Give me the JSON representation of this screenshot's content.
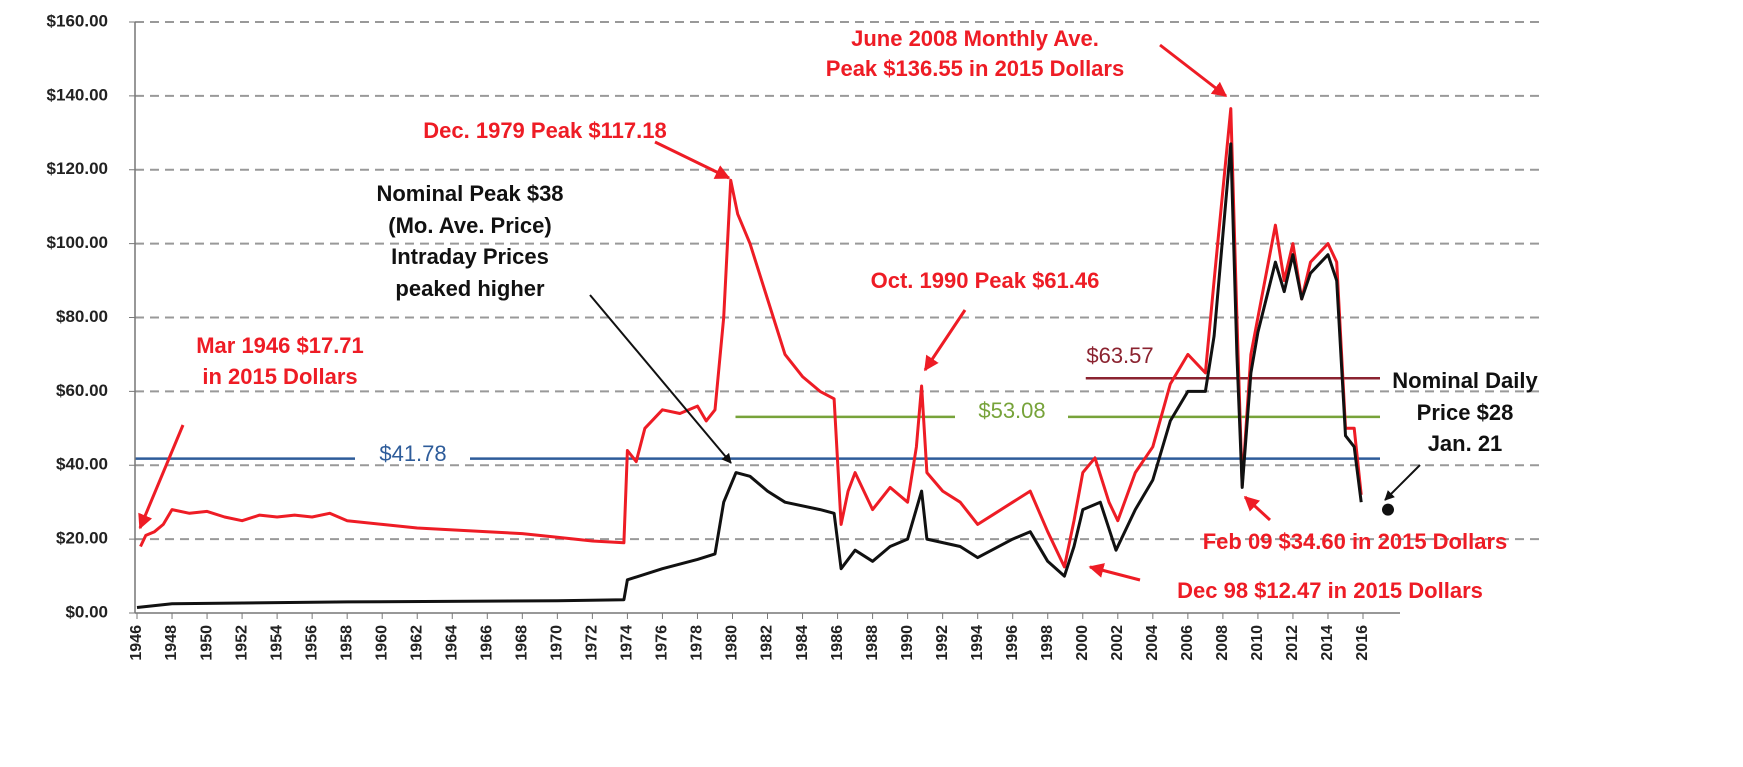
{
  "chart_data": {
    "type": "line",
    "xlim": [
      1946,
      2016
    ],
    "xticks": [
      1946,
      1948,
      1950,
      1952,
      1954,
      1956,
      1958,
      1960,
      1962,
      1964,
      1966,
      1968,
      1970,
      1972,
      1974,
      1976,
      1978,
      1980,
      1982,
      1984,
      1986,
      1988,
      1990,
      1992,
      1994,
      1996,
      1998,
      2000,
      2002,
      2004,
      2006,
      2008,
      2010,
      2012,
      2014,
      2016
    ],
    "ylim": [
      0,
      160
    ],
    "yticks": [
      {
        "value": 0,
        "label": "$0.00"
      },
      {
        "value": 20,
        "label": "$20.00"
      },
      {
        "value": 40,
        "label": "$40.00"
      },
      {
        "value": 60,
        "label": "$60.00"
      },
      {
        "value": 80,
        "label": "$80.00"
      },
      {
        "value": 100,
        "label": "$100.00"
      },
      {
        "value": 120,
        "label": "$120.00"
      },
      {
        "value": 140,
        "label": "$140.00"
      },
      {
        "value": 160,
        "label": "$160.00"
      }
    ],
    "grid": true,
    "series": [
      {
        "color": "#ee1c25",
        "x": [
          1946.2,
          1946.5,
          1947,
          1947.5,
          1948,
          1949,
          1950,
          1951,
          1952,
          1953,
          1954,
          1955,
          1956,
          1957,
          1958,
          1960,
          1962,
          1964,
          1966,
          1968,
          1970,
          1972,
          1973.8,
          1974,
          1974.5,
          1975,
          1976,
          1977,
          1978,
          1978.5,
          1979,
          1979.5,
          1979.9,
          1980.3,
          1981,
          1982,
          1983,
          1984,
          1985,
          1985.8,
          1986.2,
          1986.6,
          1987,
          1988,
          1989,
          1990,
          1990.5,
          1990.8,
          1991.1,
          1992,
          1993,
          1994,
          1995,
          1996,
          1997,
          1998,
          1998.95,
          1999.5,
          2000,
          2000.7,
          2001.5,
          2002,
          2003,
          2004,
          2005,
          2006,
          2007,
          2007.5,
          2008.45,
          2008.8,
          2009.1,
          2009.6,
          2010,
          2011,
          2011.5,
          2012,
          2012.5,
          2013,
          2014,
          2014.5,
          2015,
          2015.5,
          2015.9
        ],
        "values": [
          18,
          21,
          22,
          24,
          28,
          27,
          27.5,
          26,
          25,
          26.5,
          26,
          26.5,
          26,
          27,
          25,
          24,
          23,
          22.5,
          22,
          21.5,
          20.5,
          19.5,
          19,
          44,
          41,
          50,
          55,
          54,
          56,
          52,
          55,
          80,
          117.18,
          108,
          100,
          85,
          70,
          64,
          60,
          58,
          24,
          33,
          38,
          28,
          34,
          30,
          45,
          61.46,
          38,
          33,
          30,
          24,
          27,
          30,
          33,
          22,
          12.47,
          25,
          38,
          42,
          30,
          25,
          38,
          45,
          62,
          70,
          65,
          90,
          136.55,
          80,
          34.6,
          70,
          80,
          105,
          90,
          100,
          85,
          95,
          100,
          95,
          50,
          50,
          32
        ]
      },
      {
        "color": "#111111",
        "x": [
          1946,
          1948,
          1950,
          1958,
          1970,
          1973.8,
          1974,
          1976,
          1978,
          1979,
          1979.5,
          1980.2,
          1981,
          1982,
          1983,
          1985,
          1985.8,
          1986.2,
          1987,
          1988,
          1989,
          1990,
          1990.8,
          1991.1,
          1993,
          1994,
          1996,
          1997,
          1998,
          1998.95,
          1999.5,
          2000,
          2001,
          2001.9,
          2003,
          2004,
          2005,
          2006,
          2007,
          2007.5,
          2008.45,
          2008.8,
          2009.1,
          2009.6,
          2010,
          2011,
          2011.5,
          2012,
          2012.5,
          2013,
          2014,
          2014.5,
          2015,
          2015.5,
          2015.9
        ],
        "values": [
          1.5,
          2.5,
          2.6,
          3,
          3.3,
          3.6,
          9,
          12,
          14.5,
          16,
          30,
          38,
          37,
          33,
          30,
          28,
          27,
          12,
          17,
          14,
          18,
          20,
          33,
          20,
          18,
          15,
          20,
          22,
          14,
          10,
          18,
          28,
          30,
          17,
          28,
          36,
          52,
          60,
          60,
          75,
          127,
          70,
          34,
          65,
          76,
          95,
          87,
          97,
          85,
          92,
          97,
          90,
          48,
          45,
          30
        ]
      }
    ],
    "reference_lines": [
      {
        "label": "$41.78",
        "value": 41.78,
        "color": "#2e5c9a",
        "start": 1946,
        "end": 2016
      },
      {
        "label": "$53.08",
        "value": 53.08,
        "color": "#77a33a",
        "start": 1980,
        "end": 2016
      },
      {
        "label": "$63.57",
        "value": 63.57,
        "color": "#8b2330",
        "start": 2000,
        "end": 2016
      }
    ],
    "point": {
      "x": 2016,
      "value": 28,
      "color": "#111111"
    },
    "annotations": [
      {
        "color": "#ee1c25",
        "text": [
          "June 2008 Monthly Ave.",
          "Peak $136.55 in 2015 Dollars"
        ]
      },
      {
        "color": "#ee1c25",
        "text": [
          "Dec. 1979 Peak $117.18"
        ]
      },
      {
        "color": "#111111",
        "text": [
          "Nominal Peak $38",
          "(Mo. Ave. Price)",
          "Intraday Prices",
          "peaked higher"
        ]
      },
      {
        "color": "#ee1c25",
        "text": [
          "Oct. 1990 Peak $61.46"
        ]
      },
      {
        "color": "#ee1c25",
        "text": [
          "Mar 1946 $17.71",
          "in 2015 Dollars"
        ]
      },
      {
        "color": "#111111",
        "text": [
          "Nominal Daily",
          "Price $28",
          "Jan. 21"
        ]
      },
      {
        "color": "#ee1c25",
        "text": [
          "Feb 09 $34.60 in 2015 Dollars"
        ]
      },
      {
        "color": "#ee1c25",
        "text": [
          "Dec 98 $12.47 in 2015 Dollars"
        ]
      }
    ]
  }
}
